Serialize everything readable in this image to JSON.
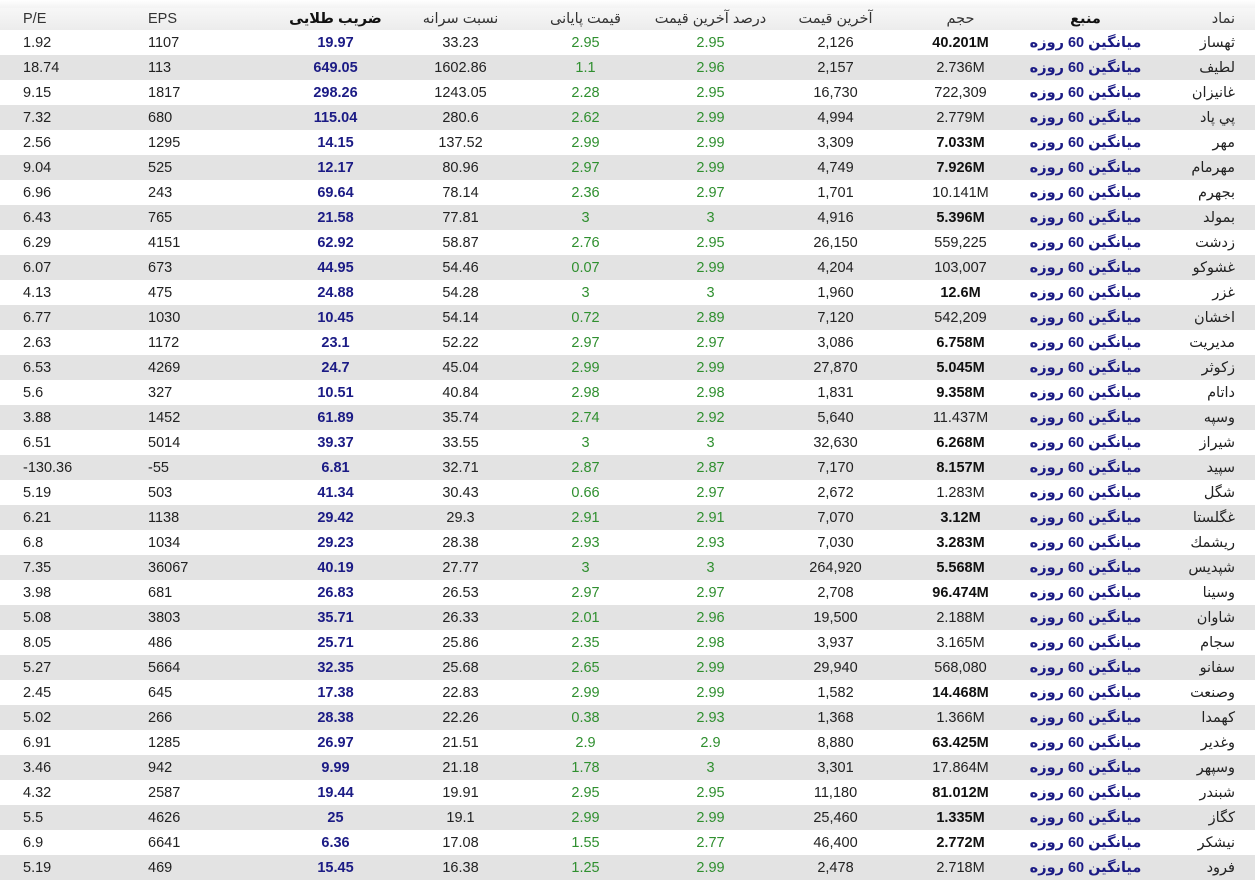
{
  "headers": {
    "pe": "P/E",
    "eps": "EPS",
    "golden": "ضریب طلایی",
    "per_capita": "نسبت سرانه",
    "close": "قیمت پایانی",
    "last_pct": "درصد آخرین قیمت",
    "last": "آخرین قیمت",
    "volume": "حجم",
    "source": "منبع",
    "symbol": "نماد"
  },
  "colors": {
    "golden": "#1b1b85",
    "green": "#2f8f2f",
    "row_alt": "#e3e3e3"
  },
  "rows": [
    {
      "pe": "1.92",
      "eps": "1107",
      "golden": "19.97",
      "per_capita": "33.23",
      "close": "2.95",
      "last_pct": "2.95",
      "last": "2,126",
      "volume": "40.201M",
      "volume_bold": true,
      "source": "میانگین 60 روزه",
      "symbol": "ثهساز"
    },
    {
      "pe": "18.74",
      "eps": "113",
      "golden": "649.05",
      "per_capita": "1602.86",
      "close": "1.1",
      "last_pct": "2.96",
      "last": "2,157",
      "volume": "2.736M",
      "volume_bold": false,
      "source": "میانگین 60 روزه",
      "symbol": "لطیف"
    },
    {
      "pe": "9.15",
      "eps": "1817",
      "golden": "298.26",
      "per_capita": "1243.05",
      "close": "2.28",
      "last_pct": "2.95",
      "last": "16,730",
      "volume": "722,309",
      "volume_bold": false,
      "source": "میانگین 60 روزه",
      "symbol": "غانیزان"
    },
    {
      "pe": "7.32",
      "eps": "680",
      "golden": "115.04",
      "per_capita": "280.6",
      "close": "2.62",
      "last_pct": "2.99",
      "last": "4,994",
      "volume": "2.779M",
      "volume_bold": false,
      "source": "میانگین 60 روزه",
      "symbol": "پي پاد"
    },
    {
      "pe": "2.56",
      "eps": "1295",
      "golden": "14.15",
      "per_capita": "137.52",
      "close": "2.99",
      "last_pct": "2.99",
      "last": "3,309",
      "volume": "7.033M",
      "volume_bold": true,
      "source": "میانگین 60 روزه",
      "symbol": "مهر"
    },
    {
      "pe": "9.04",
      "eps": "525",
      "golden": "12.17",
      "per_capita": "80.96",
      "close": "2.97",
      "last_pct": "2.99",
      "last": "4,749",
      "volume": "7.926M",
      "volume_bold": true,
      "source": "میانگین 60 روزه",
      "symbol": "مهرمام"
    },
    {
      "pe": "6.96",
      "eps": "243",
      "golden": "69.64",
      "per_capita": "78.14",
      "close": "2.36",
      "last_pct": "2.97",
      "last": "1,701",
      "volume": "10.141M",
      "volume_bold": false,
      "source": "میانگین 60 روزه",
      "symbol": "بجهرم"
    },
    {
      "pe": "6.43",
      "eps": "765",
      "golden": "21.58",
      "per_capita": "77.81",
      "close": "3",
      "last_pct": "3",
      "last": "4,916",
      "volume": "5.396M",
      "volume_bold": true,
      "source": "میانگین 60 روزه",
      "symbol": "بمولد"
    },
    {
      "pe": "6.29",
      "eps": "4151",
      "golden": "62.92",
      "per_capita": "58.87",
      "close": "2.76",
      "last_pct": "2.95",
      "last": "26,150",
      "volume": "559,225",
      "volume_bold": false,
      "source": "میانگین 60 روزه",
      "symbol": "زدشت"
    },
    {
      "pe": "6.07",
      "eps": "673",
      "golden": "44.95",
      "per_capita": "54.46",
      "close": "0.07",
      "last_pct": "2.99",
      "last": "4,204",
      "volume": "103,007",
      "volume_bold": false,
      "source": "میانگین 60 روزه",
      "symbol": "غشوکو"
    },
    {
      "pe": "4.13",
      "eps": "475",
      "golden": "24.88",
      "per_capita": "54.28",
      "close": "3",
      "last_pct": "3",
      "last": "1,960",
      "volume": "12.6M",
      "volume_bold": true,
      "source": "میانگین 60 روزه",
      "symbol": "غزر"
    },
    {
      "pe": "6.77",
      "eps": "1030",
      "golden": "10.45",
      "per_capita": "54.14",
      "close": "0.72",
      "last_pct": "2.89",
      "last": "7,120",
      "volume": "542,209",
      "volume_bold": false,
      "source": "میانگین 60 روزه",
      "symbol": "اخشان"
    },
    {
      "pe": "2.63",
      "eps": "1172",
      "golden": "23.1",
      "per_capita": "52.22",
      "close": "2.97",
      "last_pct": "2.97",
      "last": "3,086",
      "volume": "6.758M",
      "volume_bold": true,
      "source": "میانگین 60 روزه",
      "symbol": "مدیریت"
    },
    {
      "pe": "6.53",
      "eps": "4269",
      "golden": "24.7",
      "per_capita": "45.04",
      "close": "2.99",
      "last_pct": "2.99",
      "last": "27,870",
      "volume": "5.045M",
      "volume_bold": true,
      "source": "میانگین 60 روزه",
      "symbol": "زکوثر"
    },
    {
      "pe": "5.6",
      "eps": "327",
      "golden": "10.51",
      "per_capita": "40.84",
      "close": "2.98",
      "last_pct": "2.98",
      "last": "1,831",
      "volume": "9.358M",
      "volume_bold": true,
      "source": "میانگین 60 روزه",
      "symbol": "داتام"
    },
    {
      "pe": "3.88",
      "eps": "1452",
      "golden": "61.89",
      "per_capita": "35.74",
      "close": "2.74",
      "last_pct": "2.92",
      "last": "5,640",
      "volume": "11.437M",
      "volume_bold": false,
      "source": "میانگین 60 روزه",
      "symbol": "وسپه"
    },
    {
      "pe": "6.51",
      "eps": "5014",
      "golden": "39.37",
      "per_capita": "33.55",
      "close": "3",
      "last_pct": "3",
      "last": "32,630",
      "volume": "6.268M",
      "volume_bold": true,
      "source": "میانگین 60 روزه",
      "symbol": "شیراز"
    },
    {
      "pe": "-130.36",
      "eps": "-55",
      "golden": "6.81",
      "per_capita": "32.71",
      "close": "2.87",
      "last_pct": "2.87",
      "last": "7,170",
      "volume": "8.157M",
      "volume_bold": true,
      "source": "میانگین 60 روزه",
      "symbol": "سپید"
    },
    {
      "pe": "5.19",
      "eps": "503",
      "golden": "41.34",
      "per_capita": "30.43",
      "close": "0.66",
      "last_pct": "2.97",
      "last": "2,672",
      "volume": "1.283M",
      "volume_bold": false,
      "source": "میانگین 60 روزه",
      "symbol": "شگل"
    },
    {
      "pe": "6.21",
      "eps": "1138",
      "golden": "29.42",
      "per_capita": "29.3",
      "close": "2.91",
      "last_pct": "2.91",
      "last": "7,070",
      "volume": "3.12M",
      "volume_bold": true,
      "source": "میانگین 60 روزه",
      "symbol": "غگلستا"
    },
    {
      "pe": "6.8",
      "eps": "1034",
      "golden": "29.23",
      "per_capita": "28.38",
      "close": "2.93",
      "last_pct": "2.93",
      "last": "7,030",
      "volume": "3.283M",
      "volume_bold": true,
      "source": "میانگین 60 روزه",
      "symbol": "ريشمك"
    },
    {
      "pe": "7.35",
      "eps": "36067",
      "golden": "40.19",
      "per_capita": "27.77",
      "close": "3",
      "last_pct": "3",
      "last": "264,920",
      "volume": "5.568M",
      "volume_bold": true,
      "source": "میانگین 60 روزه",
      "symbol": "شپدیس"
    },
    {
      "pe": "3.98",
      "eps": "681",
      "golden": "26.83",
      "per_capita": "26.53",
      "close": "2.97",
      "last_pct": "2.97",
      "last": "2,708",
      "volume": "96.474M",
      "volume_bold": true,
      "source": "میانگین 60 روزه",
      "symbol": "وسینا"
    },
    {
      "pe": "5.08",
      "eps": "3803",
      "golden": "35.71",
      "per_capita": "26.33",
      "close": "2.01",
      "last_pct": "2.96",
      "last": "19,500",
      "volume": "2.188M",
      "volume_bold": false,
      "source": "میانگین 60 روزه",
      "symbol": "شاوان"
    },
    {
      "pe": "8.05",
      "eps": "486",
      "golden": "25.71",
      "per_capita": "25.86",
      "close": "2.35",
      "last_pct": "2.98",
      "last": "3,937",
      "volume": "3.165M",
      "volume_bold": false,
      "source": "میانگین 60 روزه",
      "symbol": "سجام"
    },
    {
      "pe": "5.27",
      "eps": "5664",
      "golden": "32.35",
      "per_capita": "25.68",
      "close": "2.65",
      "last_pct": "2.99",
      "last": "29,940",
      "volume": "568,080",
      "volume_bold": false,
      "source": "میانگین 60 روزه",
      "symbol": "سفانو"
    },
    {
      "pe": "2.45",
      "eps": "645",
      "golden": "17.38",
      "per_capita": "22.83",
      "close": "2.99",
      "last_pct": "2.99",
      "last": "1,582",
      "volume": "14.468M",
      "volume_bold": true,
      "source": "میانگین 60 روزه",
      "symbol": "وصنعت"
    },
    {
      "pe": "5.02",
      "eps": "266",
      "golden": "28.38",
      "per_capita": "22.26",
      "close": "0.38",
      "last_pct": "2.93",
      "last": "1,368",
      "volume": "1.366M",
      "volume_bold": false,
      "source": "میانگین 60 روزه",
      "symbol": "کهمدا"
    },
    {
      "pe": "6.91",
      "eps": "1285",
      "golden": "26.97",
      "per_capita": "21.51",
      "close": "2.9",
      "last_pct": "2.9",
      "last": "8,880",
      "volume": "63.425M",
      "volume_bold": true,
      "source": "میانگین 60 روزه",
      "symbol": "وغدیر"
    },
    {
      "pe": "3.46",
      "eps": "942",
      "golden": "9.99",
      "per_capita": "21.18",
      "close": "1.78",
      "last_pct": "3",
      "last": "3,301",
      "volume": "17.864M",
      "volume_bold": false,
      "source": "میانگین 60 روزه",
      "symbol": "وسپهر"
    },
    {
      "pe": "4.32",
      "eps": "2587",
      "golden": "19.44",
      "per_capita": "19.91",
      "close": "2.95",
      "last_pct": "2.95",
      "last": "11,180",
      "volume": "81.012M",
      "volume_bold": true,
      "source": "میانگین 60 روزه",
      "symbol": "شبندر"
    },
    {
      "pe": "5.5",
      "eps": "4626",
      "golden": "25",
      "per_capita": "19.1",
      "close": "2.99",
      "last_pct": "2.99",
      "last": "25,460",
      "volume": "1.335M",
      "volume_bold": true,
      "source": "میانگین 60 روزه",
      "symbol": "کگاز"
    },
    {
      "pe": "6.9",
      "eps": "6641",
      "golden": "6.36",
      "per_capita": "17.08",
      "close": "1.55",
      "last_pct": "2.77",
      "last": "46,400",
      "volume": "2.772M",
      "volume_bold": true,
      "source": "میانگین 60 روزه",
      "symbol": "نیشکر"
    },
    {
      "pe": "5.19",
      "eps": "469",
      "golden": "15.45",
      "per_capita": "16.38",
      "close": "1.25",
      "last_pct": "2.99",
      "last": "2,478",
      "volume": "2.718M",
      "volume_bold": false,
      "source": "میانگین 60 روزه",
      "symbol": "فرود"
    }
  ]
}
